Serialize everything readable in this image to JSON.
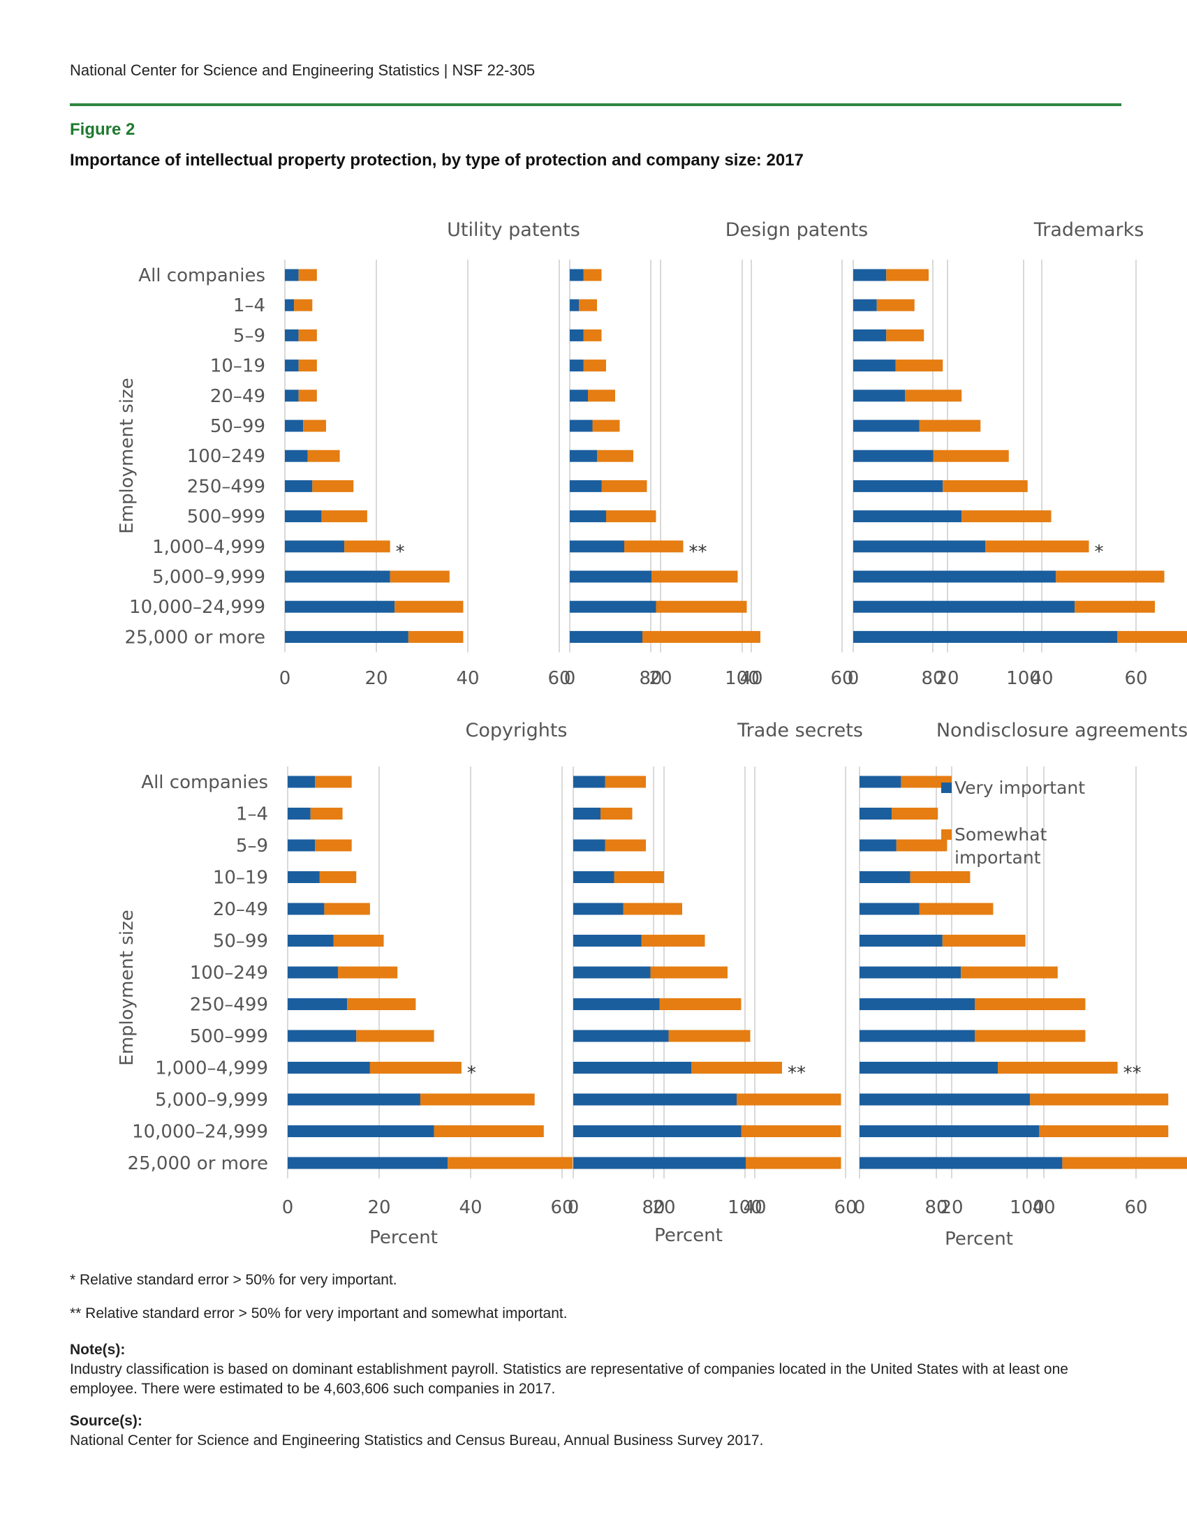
{
  "header": {
    "text": "National Center for Science and Engineering Statistics  |  NSF 22-305"
  },
  "figure": {
    "label": "Figure 2",
    "title": "Importance of intellectual property protection, by type of protection and company size: 2017"
  },
  "colors": {
    "very": "#1b5e9e",
    "somewhat": "#e57d12",
    "grid": "#d9d9d9",
    "label": "#555555"
  },
  "axis": {
    "ylabel": "Employment size",
    "xlabel": "Percent",
    "ticks": [
      "0",
      "20",
      "40",
      "60",
      "80",
      "100"
    ]
  },
  "legend": {
    "very": "Very important",
    "somewhat_line1": "Somewhat",
    "somewhat_line2": "important"
  },
  "chart_data": [
    {
      "type": "bar",
      "stacked": true,
      "title": "Utility patents",
      "xlim": [
        0,
        100
      ],
      "categories": [
        "All companies",
        "1–4",
        "5–9",
        "10–19",
        "20–49",
        "50–99",
        "100–249",
        "250–499",
        "500–999",
        "1,000–4,999",
        "5,000–9,999",
        "10,000–24,999",
        "25,000 or more"
      ],
      "series": [
        {
          "name": "Very important",
          "values": [
            3,
            2,
            3,
            3,
            3,
            4,
            5,
            6,
            8,
            13,
            23,
            24,
            27
          ]
        },
        {
          "name": "Somewhat important",
          "values": [
            4,
            4,
            4,
            4,
            4,
            5,
            7,
            9,
            10,
            10,
            13,
            15,
            12
          ]
        }
      ],
      "annotations": {
        "9": "*"
      }
    },
    {
      "type": "bar",
      "stacked": true,
      "title": "Design patents",
      "xlim": [
        0,
        100
      ],
      "categories": [
        "All companies",
        "1–4",
        "5–9",
        "10–19",
        "20–49",
        "50–99",
        "100–249",
        "250–499",
        "500–999",
        "1,000–4,999",
        "5,000–9,999",
        "10,000–24,999",
        "25,000 or more"
      ],
      "series": [
        {
          "name": "Very important",
          "values": [
            3,
            2,
            3,
            3,
            4,
            5,
            6,
            7,
            8,
            12,
            18,
            19,
            16
          ]
        },
        {
          "name": "Somewhat important",
          "values": [
            4,
            4,
            4,
            5,
            6,
            6,
            8,
            10,
            11,
            13,
            19,
            20,
            26
          ]
        }
      ],
      "annotations": {
        "9": "**"
      }
    },
    {
      "type": "bar",
      "stacked": true,
      "title": "Trademarks",
      "xlim": [
        0,
        100
      ],
      "categories": [
        "All companies",
        "1–4",
        "5–9",
        "10–19",
        "20–49",
        "50–99",
        "100–249",
        "250–499",
        "500–999",
        "1,000–4,999",
        "5,000–9,999",
        "10,000–24,999",
        "25,000 or more"
      ],
      "series": [
        {
          "name": "Very important",
          "values": [
            7,
            5,
            7,
            9,
            11,
            14,
            17,
            19,
            23,
            28,
            43,
            47,
            56
          ]
        },
        {
          "name": "Somewhat important",
          "values": [
            9,
            8,
            8,
            10,
            12,
            13,
            16,
            18,
            19,
            22,
            23,
            17,
            19
          ]
        }
      ],
      "annotations": {
        "9": "*"
      }
    },
    {
      "type": "bar",
      "stacked": true,
      "title": "Copyrights",
      "xlim": [
        0,
        100
      ],
      "categories": [
        "All companies",
        "1–4",
        "5–9",
        "10–19",
        "20–49",
        "50–99",
        "100–249",
        "250–499",
        "500–999",
        "1,000–4,999",
        "5,000–9,999",
        "10,000–24,999",
        "25,000 or more"
      ],
      "series": [
        {
          "name": "Very important",
          "values": [
            6,
            5,
            6,
            7,
            8,
            10,
            11,
            13,
            15,
            18,
            29,
            32,
            35
          ]
        },
        {
          "name": "Somewhat important",
          "values": [
            8,
            7,
            8,
            8,
            10,
            11,
            13,
            15,
            17,
            20,
            25,
            24,
            28
          ]
        }
      ],
      "annotations": {
        "9": "*"
      }
    },
    {
      "type": "bar",
      "stacked": true,
      "title": "Trade secrets",
      "xlim": [
        0,
        100
      ],
      "categories": [
        "All companies",
        "1–4",
        "5–9",
        "10–19",
        "20–49",
        "50–99",
        "100–249",
        "250–499",
        "500–999",
        "1,000–4,999",
        "5,000–9,999",
        "10,000–24,999",
        "25,000 or more"
      ],
      "series": [
        {
          "name": "Very important",
          "values": [
            7,
            6,
            7,
            9,
            11,
            15,
            17,
            19,
            21,
            26,
            36,
            37,
            38
          ]
        },
        {
          "name": "Somewhat important",
          "values": [
            9,
            7,
            9,
            11,
            13,
            14,
            17,
            18,
            18,
            20,
            23,
            22,
            21
          ]
        }
      ],
      "annotations": {
        "9": "**"
      }
    },
    {
      "type": "bar",
      "stacked": true,
      "title": "Nondisclosure agreements",
      "xlim": [
        0,
        100
      ],
      "categories": [
        "All companies",
        "1–4",
        "5–9",
        "10–19",
        "20–49",
        "50–99",
        "100–249",
        "250–499",
        "500–999",
        "1,000–4,999",
        "5,000–9,999",
        "10,000–24,999",
        "25,000 or more"
      ],
      "series": [
        {
          "name": "Very important",
          "values": [
            9,
            7,
            8,
            11,
            13,
            18,
            22,
            25,
            25,
            30,
            37,
            39,
            44
          ]
        },
        {
          "name": "Somewhat important",
          "values": [
            11,
            10,
            11,
            13,
            16,
            18,
            21,
            24,
            24,
            26,
            30,
            28,
            28
          ]
        }
      ],
      "annotations": {
        "9": "**"
      }
    }
  ],
  "footnotes": {
    "single": "* Relative standard error > 50% for very important.",
    "double": "** Relative standard error > 50% for very important and somewhat important."
  },
  "notes": {
    "note_heading": "Note(s):",
    "note_text": "Industry classification is based on dominant establishment payroll. Statistics are representative of companies located in the United States with at least one employee. There were estimated to be 4,603,606 such companies in 2017.",
    "source_heading": "Source(s):",
    "source_text": "National Center for Science and Engineering Statistics and Census Bureau, Annual Business Survey 2017."
  }
}
